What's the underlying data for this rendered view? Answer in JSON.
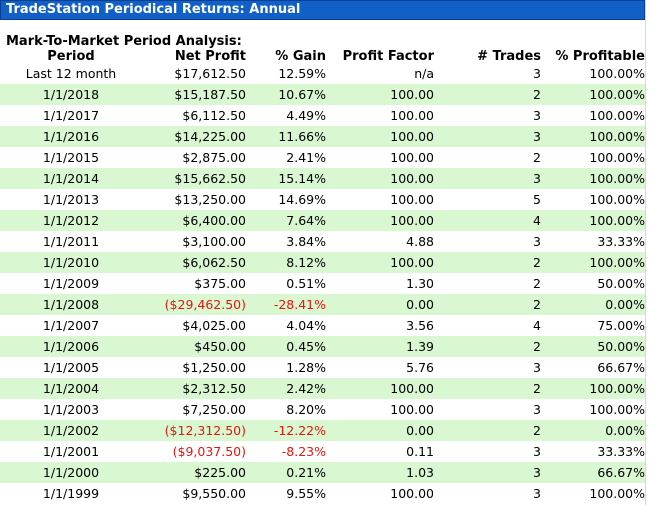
{
  "window": {
    "title": "TradeStation Periodical Returns: Annual"
  },
  "section": {
    "title": "Mark-To-Market Period Analysis:"
  },
  "columns": [
    "Period",
    "Net Profit",
    "% Gain",
    "Profit Factor",
    "# Trades",
    "% Profitable"
  ],
  "colors": {
    "title_bar": "#1060c8",
    "alt_row": "#d9f8d2",
    "negative": "#e8140c"
  },
  "rows": [
    {
      "period": "Last 12 month",
      "net_profit": "$17,612.50",
      "gain": "12.59%",
      "profit_factor": "n/a",
      "trades": "3",
      "profitable": "100.00%",
      "negative": false
    },
    {
      "period": "1/1/2018",
      "net_profit": "$15,187.50",
      "gain": "10.67%",
      "profit_factor": "100.00",
      "trades": "2",
      "profitable": "100.00%",
      "negative": false
    },
    {
      "period": "1/1/2017",
      "net_profit": "$6,112.50",
      "gain": "4.49%",
      "profit_factor": "100.00",
      "trades": "3",
      "profitable": "100.00%",
      "negative": false
    },
    {
      "period": "1/1/2016",
      "net_profit": "$14,225.00",
      "gain": "11.66%",
      "profit_factor": "100.00",
      "trades": "3",
      "profitable": "100.00%",
      "negative": false
    },
    {
      "period": "1/1/2015",
      "net_profit": "$2,875.00",
      "gain": "2.41%",
      "profit_factor": "100.00",
      "trades": "2",
      "profitable": "100.00%",
      "negative": false
    },
    {
      "period": "1/1/2014",
      "net_profit": "$15,662.50",
      "gain": "15.14%",
      "profit_factor": "100.00",
      "trades": "3",
      "profitable": "100.00%",
      "negative": false
    },
    {
      "period": "1/1/2013",
      "net_profit": "$13,250.00",
      "gain": "14.69%",
      "profit_factor": "100.00",
      "trades": "5",
      "profitable": "100.00%",
      "negative": false
    },
    {
      "period": "1/1/2012",
      "net_profit": "$6,400.00",
      "gain": "7.64%",
      "profit_factor": "100.00",
      "trades": "4",
      "profitable": "100.00%",
      "negative": false
    },
    {
      "period": "1/1/2011",
      "net_profit": "$3,100.00",
      "gain": "3.84%",
      "profit_factor": "4.88",
      "trades": "3",
      "profitable": "33.33%",
      "negative": false
    },
    {
      "period": "1/1/2010",
      "net_profit": "$6,062.50",
      "gain": "8.12%",
      "profit_factor": "100.00",
      "trades": "2",
      "profitable": "100.00%",
      "negative": false
    },
    {
      "period": "1/1/2009",
      "net_profit": "$375.00",
      "gain": "0.51%",
      "profit_factor": "1.30",
      "trades": "2",
      "profitable": "50.00%",
      "negative": false
    },
    {
      "period": "1/1/2008",
      "net_profit": "($29,462.50)",
      "gain": "-28.41%",
      "profit_factor": "0.00",
      "trades": "2",
      "profitable": "0.00%",
      "negative": true
    },
    {
      "period": "1/1/2007",
      "net_profit": "$4,025.00",
      "gain": "4.04%",
      "profit_factor": "3.56",
      "trades": "4",
      "profitable": "75.00%",
      "negative": false
    },
    {
      "period": "1/1/2006",
      "net_profit": "$450.00",
      "gain": "0.45%",
      "profit_factor": "1.39",
      "trades": "2",
      "profitable": "50.00%",
      "negative": false
    },
    {
      "period": "1/1/2005",
      "net_profit": "$1,250.00",
      "gain": "1.28%",
      "profit_factor": "5.76",
      "trades": "3",
      "profitable": "66.67%",
      "negative": false
    },
    {
      "period": "1/1/2004",
      "net_profit": "$2,312.50",
      "gain": "2.42%",
      "profit_factor": "100.00",
      "trades": "2",
      "profitable": "100.00%",
      "negative": false
    },
    {
      "period": "1/1/2003",
      "net_profit": "$7,250.00",
      "gain": "8.20%",
      "profit_factor": "100.00",
      "trades": "3",
      "profitable": "100.00%",
      "negative": false
    },
    {
      "period": "1/1/2002",
      "net_profit": "($12,312.50)",
      "gain": "-12.22%",
      "profit_factor": "0.00",
      "trades": "2",
      "profitable": "0.00%",
      "negative": true
    },
    {
      "period": "1/1/2001",
      "net_profit": "($9,037.50)",
      "gain": "-8.23%",
      "profit_factor": "0.11",
      "trades": "3",
      "profitable": "33.33%",
      "negative": true
    },
    {
      "period": "1/1/2000",
      "net_profit": "$225.00",
      "gain": "0.21%",
      "profit_factor": "1.03",
      "trades": "3",
      "profitable": "66.67%",
      "negative": false
    },
    {
      "period": "1/1/1999",
      "net_profit": "$9,550.00",
      "gain": "9.55%",
      "profit_factor": "100.00",
      "trades": "3",
      "profitable": "100.00%",
      "negative": false
    }
  ]
}
